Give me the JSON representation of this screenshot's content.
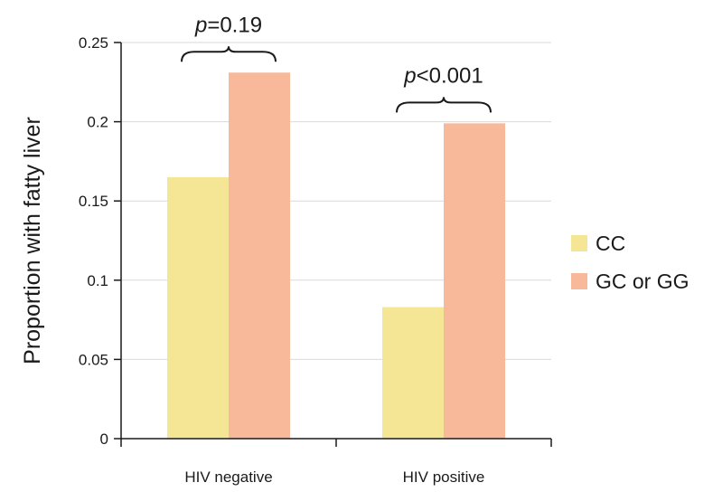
{
  "chart_data": {
    "type": "bar",
    "categories": [
      "HIV negative",
      "HIV positive"
    ],
    "series": [
      {
        "name": "CC",
        "values": [
          0.165,
          0.083
        ],
        "color": "#f5e696"
      },
      {
        "name": "GC or GG",
        "values": [
          0.231,
          0.199
        ],
        "color": "#f8b89a"
      }
    ],
    "title": "",
    "xlabel": "",
    "ylabel": "Proportion with fatty liver",
    "ylim": [
      0,
      0.25
    ],
    "yticks": [
      0,
      0.05,
      0.1,
      0.15,
      0.2,
      0.25
    ],
    "ytick_labels": [
      "0",
      "0.05",
      "0.1",
      "0.15",
      "0.2",
      "0.25"
    ],
    "grid": true,
    "legend_position": "right",
    "annotations": [
      {
        "category": "HIV negative",
        "p_symbol": "p",
        "text": "=0.19"
      },
      {
        "category": "HIV positive",
        "p_symbol": "p",
        "text": "<0.001"
      }
    ]
  }
}
